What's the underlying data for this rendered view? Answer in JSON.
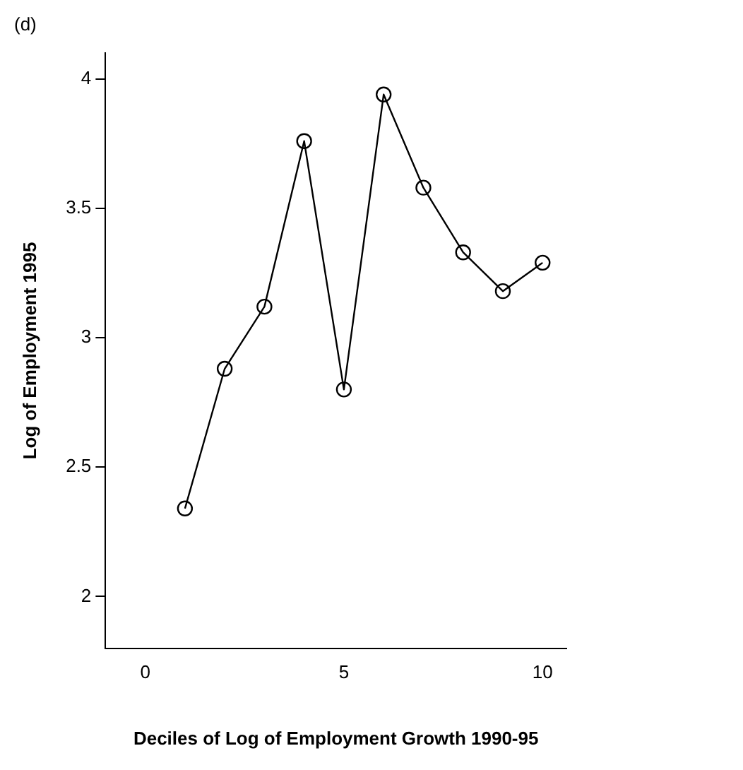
{
  "chart_data": {
    "type": "line",
    "title": "(d)",
    "xlabel": "Deciles of Log of Employment Growth 1990-95",
    "ylabel": "Log of Employment 1995",
    "x": [
      1,
      2,
      3,
      4,
      5,
      6,
      7,
      8,
      9,
      10
    ],
    "series": [
      {
        "color": "#000000",
        "values": [
          2.34,
          2.88,
          3.12,
          3.76,
          2.8,
          3.94,
          3.58,
          3.33,
          3.18,
          3.29
        ]
      }
    ],
    "xlim": [
      -1,
      10.6
    ],
    "xticks": [
      0,
      5,
      10
    ],
    "ylim": [
      1.8,
      4.1
    ],
    "yticks": [
      2,
      2.5,
      3,
      3.5,
      4
    ],
    "grid": false,
    "legend": false,
    "marker": "circle",
    "line_style": "solid"
  }
}
